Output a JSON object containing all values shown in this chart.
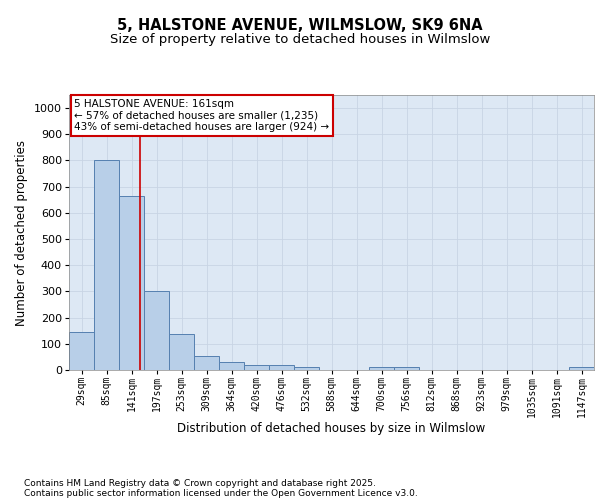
{
  "title_line1": "5, HALSTONE AVENUE, WILMSLOW, SK9 6NA",
  "title_line2": "Size of property relative to detached houses in Wilmslow",
  "xlabel": "Distribution of detached houses by size in Wilmslow",
  "ylabel": "Number of detached properties",
  "bins": [
    "29sqm",
    "85sqm",
    "141sqm",
    "197sqm",
    "253sqm",
    "309sqm",
    "364sqm",
    "420sqm",
    "476sqm",
    "532sqm",
    "588sqm",
    "644sqm",
    "700sqm",
    "756sqm",
    "812sqm",
    "868sqm",
    "923sqm",
    "979sqm",
    "1035sqm",
    "1091sqm",
    "1147sqm"
  ],
  "values": [
    145,
    800,
    665,
    300,
    137,
    55,
    32,
    18,
    18,
    10,
    0,
    0,
    10,
    10,
    0,
    0,
    0,
    0,
    0,
    0,
    10
  ],
  "bar_color": "#b8cfe8",
  "bar_edge_color": "#5580b0",
  "bar_edge_width": 0.7,
  "grid_color": "#c8d4e4",
  "bg_color": "#dde8f4",
  "annotation_box_text": "5 HALSTONE AVENUE: 161sqm\n← 57% of detached houses are smaller (1,235)\n43% of semi-detached houses are larger (924) →",
  "annotation_box_color": "#cc0000",
  "vline_color": "#cc0000",
  "ylim": [
    0,
    1050
  ],
  "yticks": [
    0,
    100,
    200,
    300,
    400,
    500,
    600,
    700,
    800,
    900,
    1000
  ],
  "footnote1": "Contains HM Land Registry data © Crown copyright and database right 2025.",
  "footnote2": "Contains public sector information licensed under the Open Government Licence v3.0.",
  "title_fontsize": 10.5,
  "subtitle_fontsize": 9.5,
  "tick_fontsize": 7,
  "label_fontsize": 8.5,
  "footnote_fontsize": 6.5,
  "annotation_fontsize": 7.5
}
